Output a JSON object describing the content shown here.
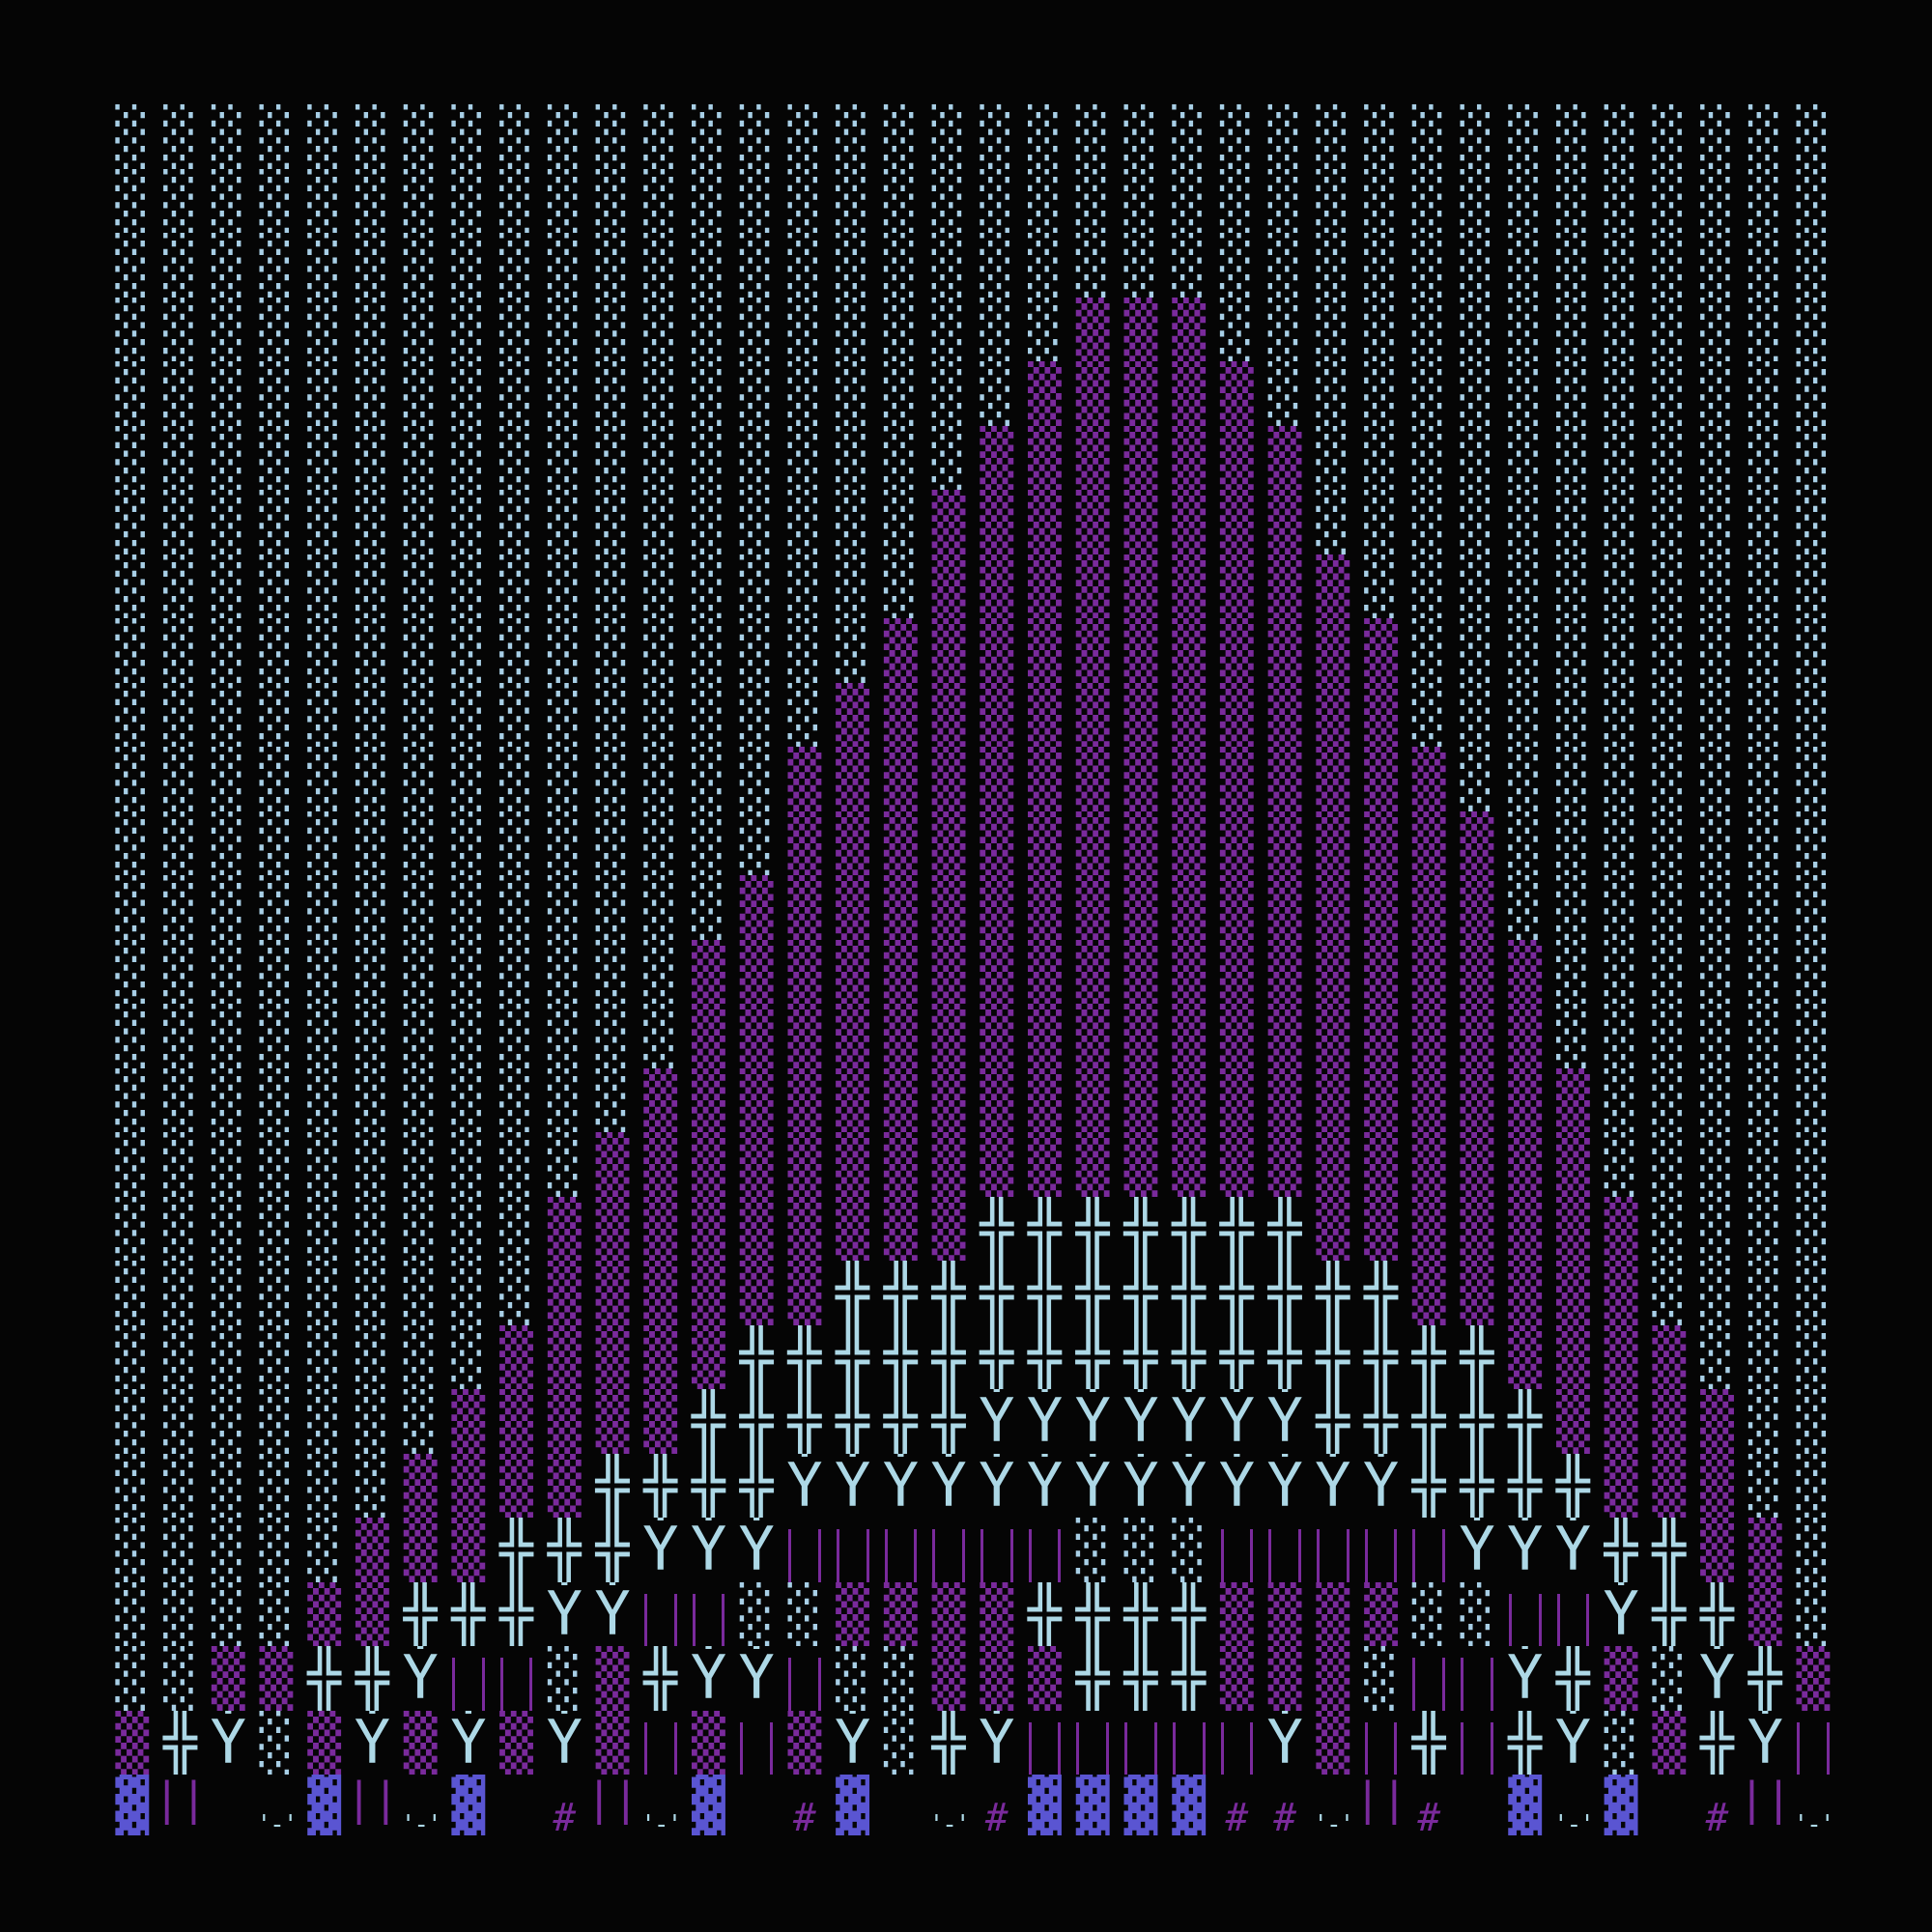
{
  "art": {
    "background": "#050505",
    "legend": {
      "L": {
        "char": "░",
        "name": "light-shade",
        "color": "#a8cfe6"
      },
      "P": {
        "char": "▒",
        "name": "purple-shade",
        "color": "#7a2a9c"
      },
      "X": {
        "char": "╬",
        "name": "double-cross",
        "color": "#add8e6"
      },
      "Y": {
        "char": "Ẏ",
        "name": "y-dot",
        "color": "#add8e6"
      },
      "B": {
        "char": "| |",
        "name": "wide-bars",
        "color": "#7a2a9c"
      },
      "N": {
        "char": "||",
        "name": "narrow-bars",
        "color": "#7a2a9c"
      },
      "D": {
        "char": "▓",
        "name": "dark-shade",
        "color": "#5a55d2"
      },
      "H": {
        "char": "#",
        "name": "hash",
        "color": "#7a2a9c"
      },
      "Q": {
        "char": "'-'",
        "name": "quote-dash",
        "color": "#add8e6"
      },
      "S": {
        "char": " ",
        "name": "space",
        "color": "#050505"
      }
    },
    "rows": [
      "LLLLLLLLLLLLLLLLLLLLLLLLLLLLLLLLLLLL",
      "LLLLLLLLLLLLLLLLLLLLLLLLLLLLLLLLLLLL",
      "LLLLLLLLLLLLLLLLLLLLLLLLLLLLLLLLLLLL",
      "LLLLLLLLLLLLLLLLLLLLPPPLLLLLLLLLLLLL",
      "LLLLLLLLLLLLLLLLLLLPPPPPLLLLLLLLLLLL",
      "LLLLLLLLLLLLLLLLLLPPPPPPPLLLLLLLLLLL",
      "LLLLLLLLLLLLLLLLLPPPPPPPPLLLLLLLLLLL",
      "LLLLLLLLLLLLLLLLLPPPPPPPPPLLLLLLLLLL",
      "LLLLLLLLLLLLLLLLPPPPPPPPPPPLLLLLLLLL",
      "LLLLLLLLLLLLLLLPPPPPPPPPPPPLLLLLLLLL",
      "LLLLLLLLLLLLLLPPPPPPPPPPPPPPLLLLLLLL",
      "LLLLLLLLLLLLLLPPPPPPPPPPPPPPPLLLLLLL",
      "LLLLLLLLLLLLLPPPPPPPPPPPPPPPPLLLLLLL",
      "LLLLLLLLLLLLPPPPPPPPPPPPPPPPPPLLLLLL",
      "LLLLLLLLLLLLPPPPPPPPPPPPPPPPPPLLLLLL",
      "LLLLLLLLLLLPPPPPPPPPPPPPPPPPPPPLLLLL",
      "LLLLLLLLLLPPPPPPPPPPPPPPPPPPPPPLLLLL",
      "LLLLLLLLLPPPPPPPPPXXXXXXXPPPPPPPLLLL",
      "LLLLLLLLLPPPPPPXXXXXXXXXXXXPPPPPLLLL",
      "LLLLLLLLPPPPPXXXXXXXXXXXXXXXXPPPPLLL",
      "LLLLLLLPPPPPXXXXXXYYYYYYYXXXXXPPPPLL",
      "LLLLLLPPPPXXXXYYYYYYYYYYYYYXXXXPPPLL",
      "LLLLLPPPXXXYYYBBBBBBLLLBBBBBYYYXXPPL",
      "LLLLPPXXXYYBBLLPPPPXXXXPPPPLLBBYXXPL",
      "LLPPXXYBBLPXYYBLLPPPXXXPPPLBBYXPLYXP",
      "PXYLPYPYPYPBPBPYLXYBBBBBYPBXBXYLPXYB",
      "DNSQDNQDSHNQDSHDSQHDDDDHHQNHSDQDSHNQ"
    ]
  }
}
